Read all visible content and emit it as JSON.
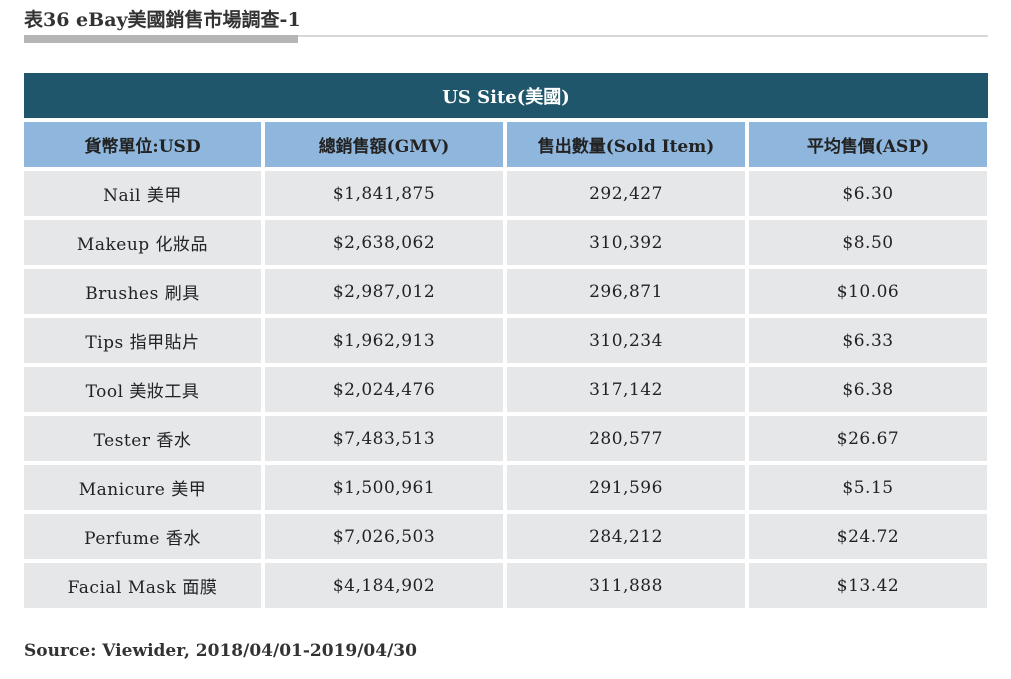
{
  "title": "表36 eBay美國銷售市場調查-1",
  "site_header": "US Site(美國)",
  "columns": [
    "貨幣單位:USD",
    "總銷售額(GMV)",
    "售出數量(Sold Item)",
    "平均售價(ASP)"
  ],
  "rows": [
    [
      "Nail 美甲",
      "$1,841,875",
      "292,427",
      "$6.30"
    ],
    [
      "Makeup 化妝品",
      "$2,638,062",
      "310,392",
      "$8.50"
    ],
    [
      "Brushes 刷具",
      "$2,987,012",
      "296,871",
      "$10.06"
    ],
    [
      "Tips 指甲貼片",
      "$1,962,913",
      "310,234",
      "$6.33"
    ],
    [
      "Tool 美妝工具",
      "$2,024,476",
      "317,142",
      "$6.38"
    ],
    [
      "Tester 香水",
      "$7,483,513",
      "280,577",
      "$26.67"
    ],
    [
      "Manicure 美甲",
      "$1,500,961",
      "291,596",
      "$5.15"
    ],
    [
      "Perfume 香水",
      "$7,026,503",
      "284,212",
      "$24.72"
    ],
    [
      "Facial Mask 面膜",
      "$4,184,902",
      "311,888",
      "$13.42"
    ]
  ],
  "source": "Source: Viewider, 2018/04/01-2019/04/30",
  "colors": {
    "site_header_bg": "#1f566b",
    "column_header_bg": "#8fb6dc",
    "cell_bg": "#e6e7e9"
  }
}
